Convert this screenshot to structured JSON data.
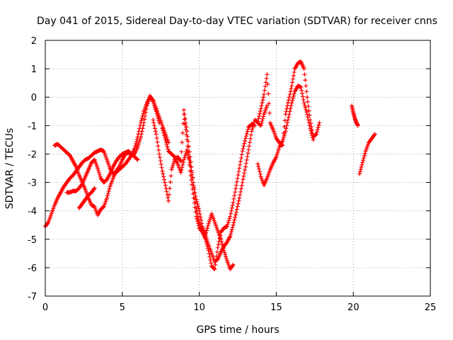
{
  "chart_data": {
    "type": "scatter",
    "title": "Day 041 of 2015, Sidereal Day-to-day VTEC variation (SDTVAR) for receiver cnns",
    "xlabel": "GPS time / hours",
    "ylabel": "SDTVAR / TECUs",
    "xlim": [
      0,
      25
    ],
    "ylim": [
      -7,
      2
    ],
    "xticks": [
      "0",
      "5",
      "10",
      "15",
      "20",
      "25"
    ],
    "yticks": [
      "-7",
      "-6",
      "-5",
      "-4",
      "-3",
      "-2",
      "-1",
      "0",
      "1",
      "2"
    ],
    "grid": true,
    "marker": "+",
    "color": "#ff0000",
    "series": [
      {
        "x": [
          0.0,
          0.2,
          0.4,
          0.6,
          0.8,
          1.0,
          1.2,
          1.4,
          1.6,
          1.8,
          2.0,
          2.2,
          2.4,
          2.6,
          2.8,
          3.0,
          3.2,
          3.4,
          3.6,
          3.8,
          4.0,
          4.2,
          4.4,
          4.6,
          4.8,
          5.0,
          5.2,
          5.4,
          5.6,
          5.8,
          6.0,
          6.2,
          6.4,
          6.6,
          6.8,
          7.0,
          7.2,
          7.4,
          7.6,
          7.8,
          8.0
        ],
        "y": [
          -4.55,
          -4.4,
          -4.1,
          -3.8,
          -3.55,
          -3.35,
          -3.15,
          -3.0,
          -2.85,
          -2.75,
          -2.6,
          -2.45,
          -2.3,
          -2.2,
          -2.15,
          -2.05,
          -1.95,
          -1.9,
          -1.85,
          -1.9,
          -2.2,
          -2.5,
          -2.7,
          -2.65,
          -2.55,
          -2.45,
          -2.35,
          -2.2,
          -2.05,
          -1.8,
          -1.4,
          -0.9,
          -0.5,
          -0.2,
          0.0,
          -0.1,
          -0.4,
          -0.7,
          -1.0,
          -1.3,
          -1.6
        ]
      },
      {
        "x": [
          0.6,
          0.8,
          1.0,
          1.2,
          1.4,
          1.6,
          1.8,
          2.0,
          2.2,
          2.4,
          2.6,
          2.8,
          3.0,
          3.2,
          3.4,
          3.6,
          3.8,
          4.0,
          4.2,
          4.4,
          4.6,
          4.8,
          5.0,
          5.2,
          5.4,
          5.6,
          5.8,
          6.0,
          6.2,
          6.4,
          6.6,
          6.8,
          7.0,
          7.2,
          7.4
        ],
        "y": [
          -1.7,
          -1.65,
          -1.75,
          -1.85,
          -1.95,
          -2.05,
          -2.25,
          -2.45,
          -2.75,
          -3.0,
          -3.25,
          -3.55,
          -3.8,
          -3.85,
          -4.15,
          -3.95,
          -3.85,
          -3.55,
          -3.15,
          -2.85,
          -2.6,
          -2.45,
          -2.2,
          -2.0,
          -1.95,
          -2.05,
          -2.0,
          -1.75,
          -1.4,
          -0.9,
          -0.3,
          0.05,
          -0.15,
          -0.5,
          -0.9
        ]
      },
      {
        "x": [
          1.4,
          1.6,
          1.8,
          2.0,
          2.2,
          2.4,
          2.6,
          2.8,
          3.0,
          3.2,
          3.4,
          3.6,
          3.8,
          4.0,
          4.2,
          4.4,
          4.6,
          4.8,
          5.0,
          5.2,
          5.4,
          5.6,
          5.8,
          6.0
        ],
        "y": [
          -3.35,
          -3.35,
          -3.3,
          -3.3,
          -3.2,
          -3.05,
          -2.8,
          -2.55,
          -2.3,
          -2.2,
          -2.5,
          -2.85,
          -3.0,
          -2.9,
          -2.7,
          -2.45,
          -2.25,
          -2.1,
          -2.0,
          -1.95,
          -1.9,
          -2.0,
          -2.1,
          -2.2
        ]
      },
      {
        "x": [
          2.2,
          2.4,
          2.6,
          2.8,
          3.0,
          3.2
        ],
        "y": [
          -3.9,
          -3.75,
          -3.6,
          -3.45,
          -3.35,
          -3.2
        ]
      },
      {
        "x": [
          7.6,
          7.8,
          8.0,
          8.2,
          8.4,
          8.6,
          8.8,
          9.0,
          9.2,
          9.4,
          9.6,
          9.8,
          10.0,
          10.2,
          10.4,
          10.6,
          10.8,
          11.0,
          11.2,
          11.4,
          11.6,
          11.8,
          12.0,
          12.2,
          12.4,
          12.6,
          12.8,
          13.0,
          13.2,
          13.4,
          13.6,
          13.8,
          14.0,
          14.2,
          14.4
        ],
        "y": [
          -1.1,
          -1.5,
          -1.9,
          -2.0,
          -2.1,
          -2.35,
          -2.65,
          -2.2,
          -1.85,
          -2.3,
          -3.0,
          -3.9,
          -4.4,
          -4.7,
          -4.85,
          -5.2,
          -5.5,
          -5.8,
          -5.7,
          -5.45,
          -5.25,
          -5.1,
          -4.9,
          -4.5,
          -4.05,
          -3.55,
          -3.0,
          -2.45,
          -1.85,
          -1.2,
          -0.8,
          -0.9,
          -1.0,
          -0.6,
          -0.3
        ]
      },
      {
        "x": [
          7.0,
          7.2,
          7.4,
          7.6,
          7.8,
          8.0,
          8.2,
          8.4,
          8.6,
          8.8,
          9.0,
          9.2,
          9.4,
          9.6,
          9.8,
          10.0,
          10.2,
          10.4,
          10.6,
          10.8,
          11.0,
          11.2,
          11.4,
          11.6,
          11.8,
          12.0,
          12.2,
          12.4,
          12.6,
          12.8,
          13.0,
          13.2,
          13.4,
          13.6
        ],
        "y": [
          -0.8,
          -1.3,
          -2.0,
          -2.6,
          -3.1,
          -3.65,
          -2.55,
          -2.2,
          -2.1,
          -2.25,
          -0.6,
          -1.5,
          -2.6,
          -3.4,
          -4.2,
          -4.6,
          -4.75,
          -5.0,
          -5.4,
          -5.95,
          -6.05,
          -5.3,
          -4.75,
          -4.6,
          -4.55,
          -4.2,
          -3.7,
          -3.1,
          -2.5,
          -1.9,
          -1.45,
          -1.05,
          -0.95,
          -1.0
        ]
      },
      {
        "x": [
          9.0,
          9.2,
          9.4,
          9.6,
          9.8,
          10.0,
          10.2,
          10.4,
          10.6,
          10.8,
          11.0,
          11.2,
          11.4,
          11.6,
          11.8,
          12.0,
          12.2
        ],
        "y": [
          -0.45,
          -1.2,
          -2.1,
          -3.0,
          -3.6,
          -4.0,
          -4.55,
          -4.85,
          -4.45,
          -4.1,
          -4.4,
          -4.7,
          -5.0,
          -5.4,
          -5.75,
          -6.05,
          -5.9
        ]
      },
      {
        "x": [
          13.8,
          14.0,
          14.2,
          14.4,
          14.6,
          14.8,
          15.0,
          15.2,
          15.4,
          15.6,
          15.8,
          16.0,
          16.2,
          16.4,
          16.6,
          16.8,
          17.0,
          17.2,
          17.4,
          17.6,
          17.8
        ],
        "y": [
          -0.85,
          -0.4,
          0.1,
          0.8,
          -0.9,
          -1.15,
          -1.45,
          -1.6,
          -1.7,
          -0.6,
          -0.1,
          0.4,
          1.0,
          1.2,
          1.25,
          1.0,
          0.0,
          -0.8,
          -1.4,
          -1.3,
          -0.9
        ]
      },
      {
        "x": [
          13.8,
          14.0,
          14.2,
          14.4,
          14.6,
          14.8,
          15.0,
          15.2,
          15.4,
          15.6,
          15.8,
          16.0,
          16.2,
          16.4,
          16.6,
          16.8,
          17.0,
          17.2,
          17.4
        ],
        "y": [
          -2.35,
          -2.8,
          -3.1,
          -2.85,
          -2.55,
          -2.3,
          -2.1,
          -1.75,
          -1.55,
          -1.2,
          -0.7,
          -0.2,
          0.2,
          0.4,
          0.35,
          -0.2,
          -0.6,
          -1.1,
          -1.5
        ]
      },
      {
        "x": [
          19.9,
          20.0,
          20.1,
          20.2,
          20.3
        ],
        "y": [
          -0.3,
          -0.55,
          -0.75,
          -0.9,
          -1.0
        ]
      },
      {
        "x": [
          20.4,
          20.6,
          20.8,
          21.0,
          21.2,
          21.4
        ],
        "y": [
          -2.7,
          -2.3,
          -1.9,
          -1.6,
          -1.45,
          -1.3
        ]
      }
    ]
  }
}
